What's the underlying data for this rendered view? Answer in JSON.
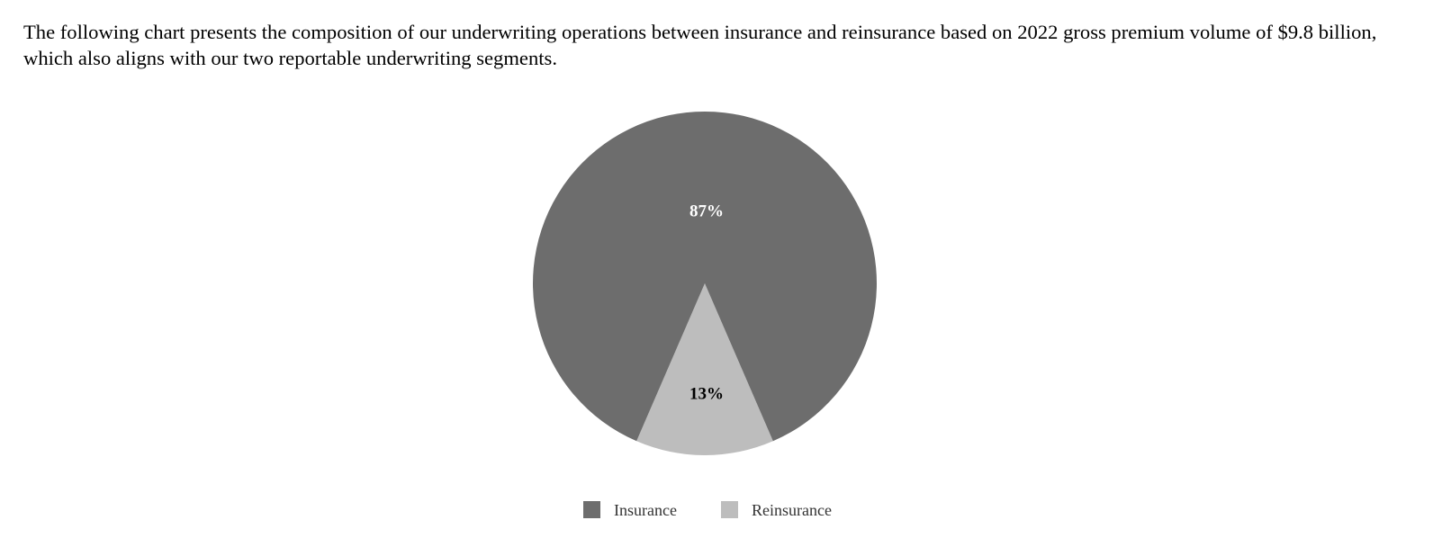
{
  "intro_text": "The following chart presents the composition of our underwriting operations between insurance and reinsurance based on 2022 gross premium volume of $9.8 billion, which also aligns with our two reportable underwriting segments.",
  "chart_data": {
    "type": "pie",
    "slices": [
      {
        "name": "Insurance",
        "value": 87,
        "label": "87%",
        "color": "#6d6d6d",
        "label_color": "#ffffff"
      },
      {
        "name": "Reinsurance",
        "value": 13,
        "label": "13%",
        "color": "#bdbdbd",
        "label_color": "#000000"
      }
    ],
    "legend": {
      "placement": "bottom-center",
      "entries": [
        "Insurance",
        "Reinsurance"
      ]
    }
  }
}
